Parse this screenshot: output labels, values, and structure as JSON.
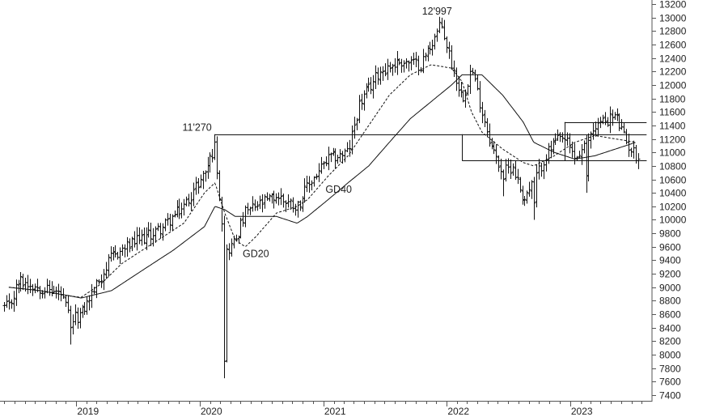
{
  "chart_data": {
    "type": "line",
    "subtype": "ohlc-bar",
    "title": "",
    "xlabel": "",
    "ylabel": "",
    "ylim": [
      7400,
      13200
    ],
    "y_ticks": [
      7400,
      7600,
      7800,
      8000,
      8200,
      8400,
      8600,
      8800,
      9000,
      9200,
      9400,
      9600,
      9800,
      10000,
      10200,
      10400,
      10600,
      10800,
      11000,
      11200,
      11400,
      11600,
      11800,
      12000,
      12200,
      12400,
      12600,
      12800,
      13000,
      13200
    ],
    "x_ticks": [
      "2019",
      "2020",
      "2021",
      "2022",
      "2023"
    ],
    "grid": false,
    "legend": "none",
    "series": [
      {
        "name": "GD20",
        "style": "dashed",
        "points": [
          [
            "2018-06",
            9000
          ],
          [
            "2018-09",
            8950
          ],
          [
            "2018-12",
            8870
          ],
          [
            "2019-01",
            8850
          ],
          [
            "2019-03",
            9050
          ],
          [
            "2019-05",
            9350
          ],
          [
            "2019-07",
            9550
          ],
          [
            "2019-09",
            9750
          ],
          [
            "2019-11",
            9950
          ],
          [
            "2020-01",
            10400
          ],
          [
            "2020-02",
            10550
          ],
          [
            "2020-03",
            10100
          ],
          [
            "2020-04",
            9700
          ],
          [
            "2020-05",
            9600
          ],
          [
            "2020-06",
            9750
          ],
          [
            "2020-08",
            10100
          ],
          [
            "2020-10",
            10200
          ],
          [
            "2020-11",
            10300
          ],
          [
            "2021-01",
            10650
          ],
          [
            "2021-03",
            10950
          ],
          [
            "2021-05",
            11400
          ],
          [
            "2021-07",
            11850
          ],
          [
            "2021-09",
            12150
          ],
          [
            "2021-11",
            12300
          ],
          [
            "2022-01",
            12250
          ],
          [
            "2022-02",
            12050
          ],
          [
            "2022-03",
            11600
          ],
          [
            "2022-04",
            11300
          ],
          [
            "2022-06",
            11050
          ],
          [
            "2022-08",
            10850
          ],
          [
            "2022-09",
            10800
          ],
          [
            "2022-11",
            10950
          ],
          [
            "2023-01",
            11150
          ],
          [
            "2023-03",
            11250
          ],
          [
            "2023-05",
            11200
          ],
          [
            "2023-07",
            11150
          ]
        ]
      },
      {
        "name": "GD40",
        "style": "solid",
        "points": [
          [
            "2018-06",
            9000
          ],
          [
            "2018-09",
            8950
          ],
          [
            "2018-12",
            8870
          ],
          [
            "2019-01",
            8840
          ],
          [
            "2019-04",
            8950
          ],
          [
            "2019-07",
            9250
          ],
          [
            "2019-10",
            9550
          ],
          [
            "2020-01",
            9900
          ],
          [
            "2020-02",
            10200
          ],
          [
            "2020-03",
            10150
          ],
          [
            "2020-04",
            10050
          ],
          [
            "2020-06",
            10050
          ],
          [
            "2020-08",
            10050
          ],
          [
            "2020-10",
            9950
          ],
          [
            "2020-11",
            10050
          ],
          [
            "2021-01",
            10300
          ],
          [
            "2021-03",
            10550
          ],
          [
            "2021-05",
            10800
          ],
          [
            "2021-07",
            11150
          ],
          [
            "2021-09",
            11500
          ],
          [
            "2021-11",
            11750
          ],
          [
            "2022-01",
            12000
          ],
          [
            "2022-02",
            12150
          ],
          [
            "2022-04",
            12150
          ],
          [
            "2022-06",
            11850
          ],
          [
            "2022-08",
            11450
          ],
          [
            "2022-09",
            11150
          ],
          [
            "2022-11",
            11000
          ],
          [
            "2023-01",
            10900
          ],
          [
            "2023-03",
            10950
          ],
          [
            "2023-05",
            11050
          ],
          [
            "2023-07",
            11150
          ]
        ]
      }
    ],
    "price": {
      "name": "OHLC weekly bars",
      "anchors": [
        [
          "2018-06",
          8700
        ],
        [
          "2018-07",
          9100
        ],
        [
          "2018-09",
          9000
        ],
        [
          "2018-11",
          8900
        ],
        [
          "2018-12",
          8500
        ],
        [
          "2019-01",
          8600
        ],
        [
          "2019-02",
          8900
        ],
        [
          "2019-04",
          9450
        ],
        [
          "2019-06",
          9650
        ],
        [
          "2019-08",
          9800
        ],
        [
          "2019-09",
          9900
        ],
        [
          "2019-11",
          10200
        ],
        [
          "2020-01",
          10700
        ],
        [
          "2020-02",
          11100
        ],
        [
          "2020-03",
          9500
        ],
        [
          "2020-04",
          9700
        ],
        [
          "2020-05",
          10100
        ],
        [
          "2020-06",
          10200
        ],
        [
          "2020-08",
          10350
        ],
        [
          "2020-10",
          10200
        ],
        [
          "2020-11",
          10500
        ],
        [
          "2021-01",
          10900
        ],
        [
          "2021-03",
          11000
        ],
        [
          "2021-04",
          11700
        ],
        [
          "2021-06",
          12200
        ],
        [
          "2021-08",
          12350
        ],
        [
          "2021-10",
          12300
        ],
        [
          "2021-12",
          12900
        ],
        [
          "2022-01",
          12300
        ],
        [
          "2022-02",
          11800
        ],
        [
          "2022-03",
          12250
        ],
        [
          "2022-04",
          11600
        ],
        [
          "2022-05",
          11050
        ],
        [
          "2022-06",
          10700
        ],
        [
          "2022-07",
          10800
        ],
        [
          "2022-08",
          10300
        ],
        [
          "2022-09",
          10550
        ],
        [
          "2022-10",
          10900
        ],
        [
          "2022-11",
          11150
        ],
        [
          "2022-12",
          11200
        ],
        [
          "2023-01",
          10900
        ],
        [
          "2023-02",
          11100
        ],
        [
          "2023-03",
          11400
        ],
        [
          "2023-05",
          11550
        ],
        [
          "2023-06",
          11150
        ],
        [
          "2023-07",
          10950
        ]
      ],
      "extremes": [
        [
          "2018-12",
          8150,
          "low"
        ],
        [
          "2020-03",
          7650,
          "low"
        ],
        [
          "2020-02",
          11270,
          "high"
        ],
        [
          "2021-12",
          12997,
          "high"
        ],
        [
          "2022-06",
          10350,
          "low"
        ],
        [
          "2022-09",
          10000,
          "low"
        ],
        [
          "2023-02",
          10400,
          "low"
        ],
        [
          "2023-05",
          11600,
          "high"
        ]
      ]
    },
    "reference_lines": [
      {
        "type": "horizontal",
        "value": 11270,
        "from": "2020-02",
        "to": "2023-08"
      },
      {
        "type": "horizontal",
        "value": 10880,
        "from": "2022-02",
        "to": "2023-08"
      },
      {
        "type": "vertical",
        "date": "2022-02",
        "from_value": 10880,
        "to_value": 11270
      },
      {
        "type": "horizontal",
        "value": 11450,
        "from": "2022-12",
        "to": "2023-08"
      },
      {
        "type": "horizontal",
        "value": 10880,
        "from": "2022-12",
        "to": "2023-08"
      },
      {
        "type": "vertical",
        "date": "2022-12",
        "from_value": 10880,
        "to_value": 11450
      }
    ],
    "annotations": [
      {
        "label": "11'270",
        "date": "2020-02",
        "value": 11270
      },
      {
        "label": "12'997",
        "date": "2021-12",
        "value": 12997
      },
      {
        "label": "GD40",
        "date": "2021-02",
        "value": 10400
      },
      {
        "label": "GD20",
        "date": "2020-06",
        "value": 9450
      }
    ]
  }
}
